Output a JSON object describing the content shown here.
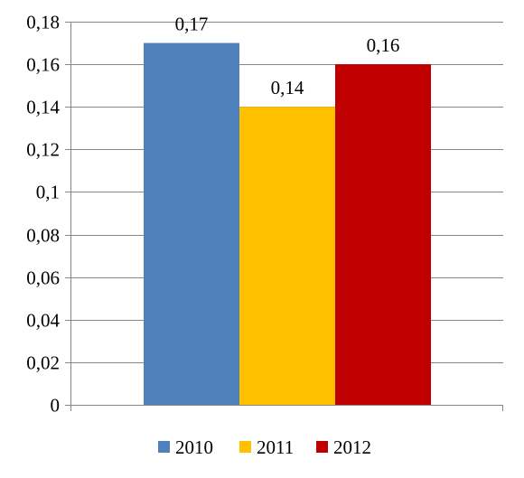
{
  "chart_data": {
    "type": "bar",
    "categories": [
      ""
    ],
    "series": [
      {
        "name": "2010",
        "values": [
          0.17
        ],
        "color": "#4F81BD"
      },
      {
        "name": "2011",
        "values": [
          0.14
        ],
        "color": "#FFC000"
      },
      {
        "name": "2012",
        "values": [
          0.16
        ],
        "color": "#C00000"
      }
    ],
    "data_labels": [
      "0,17",
      "0,14",
      "0,16"
    ],
    "ylim": [
      0,
      0.18
    ],
    "yticks": [
      0,
      0.02,
      0.04,
      0.06,
      0.08,
      0.1,
      0.12,
      0.14,
      0.16,
      0.18
    ],
    "ytick_labels": [
      "0",
      "0,02",
      "0,04",
      "0,06",
      "0,08",
      "0,1",
      "0,12",
      "0,14",
      "0,16",
      "0,18"
    ],
    "grid": true,
    "legend_position": "bottom"
  }
}
